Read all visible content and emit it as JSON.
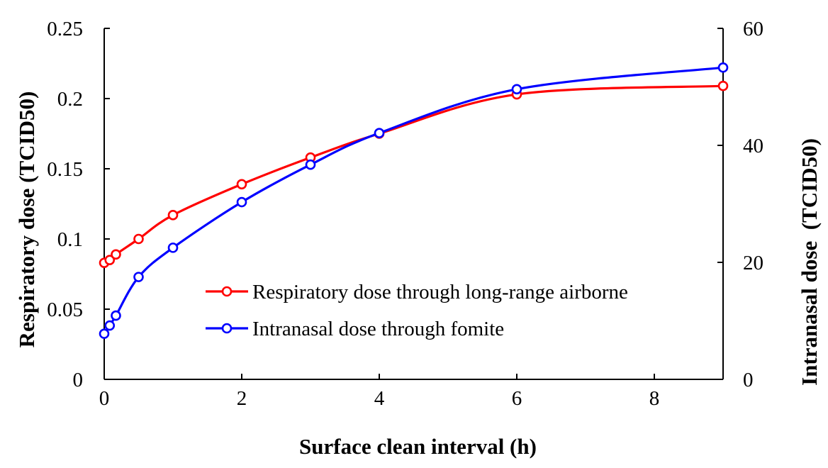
{
  "chart_data": {
    "type": "line",
    "xlabel": "Surface clean interval (h)",
    "ylabel_left": "Respiratory dose (TCID50)",
    "ylabel_right": "Intranasal dose  (TCID50)",
    "xlim": [
      0,
      9
    ],
    "ylim_left": [
      0,
      0.25
    ],
    "ylim_right": [
      0,
      60
    ],
    "x_ticks": [
      0,
      2,
      4,
      6,
      8
    ],
    "x_tick_labels": [
      "0",
      "2",
      "4",
      "6",
      "8"
    ],
    "y_left_ticks": [
      0,
      0.05,
      0.1,
      0.15,
      0.2,
      0.25
    ],
    "y_left_tick_labels": [
      "0",
      "0.05",
      "0.1",
      "0.15",
      "0.2",
      "0.25"
    ],
    "y_right_ticks": [
      0,
      20,
      40,
      60
    ],
    "y_right_tick_labels": [
      "0",
      "20",
      "40",
      "60"
    ],
    "grid": false,
    "legend_position": "center-right",
    "series": [
      {
        "name": "Respiratory dose through long-range airborne",
        "axis": "left",
        "color": "#ff0000",
        "marker": "open-circle",
        "x": [
          0,
          0.08,
          0.17,
          0.5,
          1,
          2,
          3,
          4,
          6,
          9
        ],
        "y": [
          0.083,
          0.085,
          0.089,
          0.1,
          0.117,
          0.139,
          0.158,
          0.175,
          0.203,
          0.209
        ]
      },
      {
        "name": "Intranasal dose through fomite",
        "axis": "right",
        "color": "#0000ff",
        "marker": "open-circle",
        "x": [
          0,
          0.08,
          0.17,
          0.5,
          1,
          2,
          3,
          4,
          6,
          9
        ],
        "y": [
          7.8,
          9.2,
          10.9,
          17.5,
          22.5,
          30.3,
          36.7,
          42.1,
          49.6,
          53.3
        ]
      }
    ]
  }
}
